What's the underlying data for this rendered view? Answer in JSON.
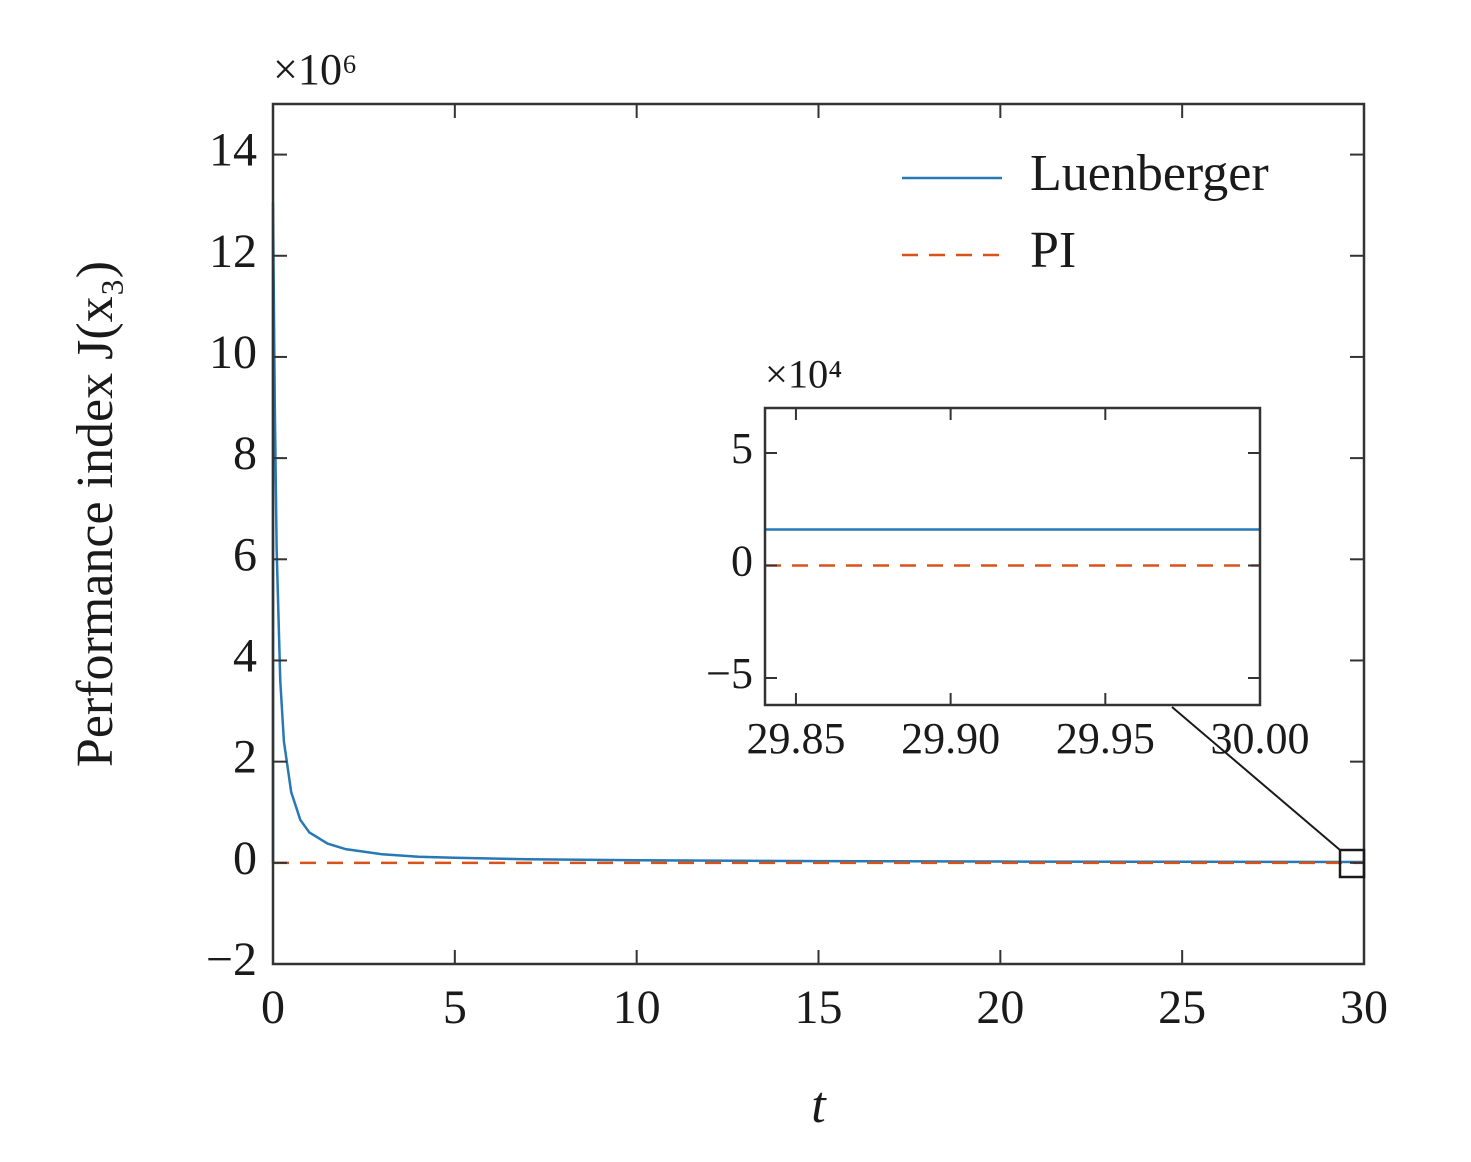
{
  "chart_data": [
    {
      "type": "line",
      "y_multiplier": "×10⁶",
      "x_label": "t",
      "y_label": "Performance index J(x₃)",
      "xlim": [
        0,
        30
      ],
      "ylim": [
        -2,
        15
      ],
      "xticks": [
        0,
        5,
        10,
        15,
        20,
        25,
        30
      ],
      "yticks": [
        {
          "value": -2,
          "label": "−2"
        },
        0,
        2,
        4,
        6,
        8,
        10,
        12,
        14
      ],
      "legend": "upper right",
      "series": [
        {
          "name": "Luenberger",
          "color": "#2878b5",
          "dash": false,
          "x": [
            0,
            0,
            0.05,
            0.1,
            0.2,
            0.3,
            0.5,
            0.75,
            1,
            1.5,
            2,
            3,
            4,
            5,
            7,
            10,
            15,
            20,
            25,
            30
          ],
          "values": [
            0,
            13.05,
            9,
            6.2,
            3.6,
            2.4,
            1.4,
            0.85,
            0.6,
            0.38,
            0.27,
            0.17,
            0.12,
            0.1,
            0.07,
            0.05,
            0.033,
            0.025,
            0.02,
            0.016
          ]
        },
        {
          "name": "PI",
          "color": "#d95319",
          "dash": true,
          "x": [
            0,
            30
          ],
          "values": [
            0,
            0
          ]
        }
      ]
    },
    {
      "type": "line",
      "y_multiplier": "×10⁴",
      "xlim": [
        29.84,
        30
      ],
      "ylim": [
        -6.2,
        7
      ],
      "xticks": [
        29.85,
        {
          "value": 29.9,
          "label": "29.90"
        },
        29.95,
        {
          "value": 30,
          "label": "30.00"
        }
      ],
      "yticks": [
        {
          "value": -5,
          "label": "−5"
        },
        0,
        5
      ],
      "series": [
        {
          "color": "#2878b5",
          "dash": false,
          "x": [
            29.84,
            30
          ],
          "values": [
            1.6,
            1.6
          ]
        },
        {
          "color": "#d95319",
          "dash": true,
          "x": [
            29.84,
            30
          ],
          "values": [
            0,
            0
          ]
        }
      ]
    }
  ]
}
